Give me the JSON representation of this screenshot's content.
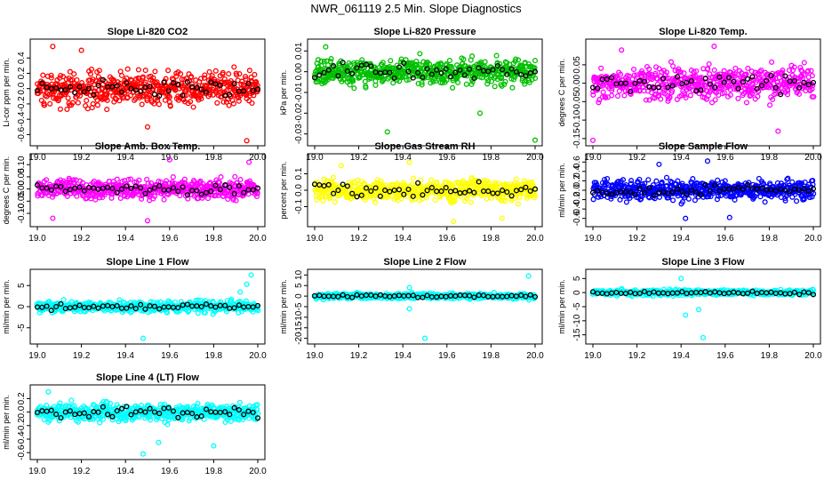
{
  "figure_title": "NWR_061119  2.5 Min. Slope Diagnostics",
  "chart_data": [
    {
      "type": "scatter",
      "title": "Slope Li-820 CO2",
      "ylabel": "Li-cor ppm per min.",
      "xlim": [
        19.0,
        20.0
      ],
      "ylim": [
        -0.7,
        0.6
      ],
      "x_ticks": [
        "19.0",
        "19.2",
        "19.4",
        "19.6",
        "19.8",
        "20.0"
      ],
      "y_ticks": [
        -0.6,
        -0.4,
        -0.2,
        0.0,
        0.2,
        0.4
      ],
      "y_tick_labels": [
        "-0.6",
        "-0.4",
        "-0.2",
        "0.0",
        "0.2",
        "0.4"
      ],
      "color": "#ff0000",
      "spread": 0.2,
      "outliers": [
        [
          19.07,
          0.55
        ],
        [
          19.95,
          -0.68
        ],
        [
          19.5,
          -0.5
        ],
        [
          19.2,
          0.5
        ]
      ]
    },
    {
      "type": "scatter",
      "title": "Slope Li-820 Pressure",
      "ylabel": "kPa per min.",
      "xlim": [
        19.0,
        20.0
      ],
      "ylim": [
        -0.034,
        0.014
      ],
      "x_ticks": [
        "19.0",
        "19.2",
        "19.4",
        "19.6",
        "19.8",
        "20.0"
      ],
      "y_ticks": [
        -0.03,
        -0.02,
        -0.01,
        0.0,
        0.01
      ],
      "y_tick_labels": [
        "-0.03",
        "-0.02",
        "-0.01",
        "0.00",
        "0.01"
      ],
      "color": "#00c000",
      "spread": 0.006,
      "outliers": [
        [
          19.05,
          0.012
        ],
        [
          19.33,
          -0.029
        ],
        [
          20.0,
          -0.033
        ],
        [
          19.75,
          -0.02
        ]
      ]
    },
    {
      "type": "scatter",
      "title": "Slope Li-820 Temp.",
      "ylabel": "degrees C per min.",
      "xlim": [
        19.0,
        20.0
      ],
      "ylim": [
        -0.16,
        0.11
      ],
      "x_ticks": [
        "19.0",
        "19.2",
        "19.4",
        "19.6",
        "19.8",
        "20.0"
      ],
      "y_ticks": [
        -0.15,
        -0.1,
        -0.05,
        0.0,
        0.05
      ],
      "y_tick_labels": [
        "-0.15",
        "-0.10",
        "-0.05",
        "0.00",
        "0.05"
      ],
      "color": "#ff00ff",
      "spread": 0.04,
      "outliers": [
        [
          19.0,
          -0.155
        ],
        [
          19.55,
          0.1
        ],
        [
          19.84,
          -0.13
        ],
        [
          19.13,
          0.09
        ]
      ]
    },
    {
      "type": "scatter",
      "title": "Slope Amb. Box Temp.",
      "ylabel": "degrees C per min.",
      "xlim": [
        19.0,
        20.0
      ],
      "ylim": [
        -0.14,
        0.13
      ],
      "x_ticks": [
        "19.0",
        "19.2",
        "19.4",
        "19.6",
        "19.8",
        "20.0"
      ],
      "y_ticks": [
        -0.1,
        -0.05,
        0.0,
        0.05,
        0.1
      ],
      "y_tick_labels": [
        "-0.10",
        "-0.05",
        "0.00",
        "0.05",
        "0.10"
      ],
      "color": "#ff00ff",
      "spread": 0.04,
      "outliers": [
        [
          19.6,
          0.12
        ],
        [
          19.07,
          -0.12
        ],
        [
          19.96,
          0.11
        ],
        [
          19.5,
          -0.13
        ]
      ]
    },
    {
      "type": "scatter",
      "title": "Slope Gas Stream RH",
      "ylabel": "percent per min.",
      "xlim": [
        19.0,
        20.0
      ],
      "ylim": [
        -0.2,
        0.2
      ],
      "x_ticks": [
        "19.0",
        "19.2",
        "19.4",
        "19.6",
        "19.8",
        "20.0"
      ],
      "y_ticks": [
        -0.1,
        0.0,
        0.1
      ],
      "y_tick_labels": [
        "-0.1",
        "0.0",
        "0.1"
      ],
      "color": "#ffff00",
      "spread": 0.06,
      "outliers": [
        [
          19.63,
          -0.19
        ],
        [
          19.43,
          0.17
        ],
        [
          19.12,
          0.15
        ],
        [
          19.85,
          -0.17
        ]
      ]
    },
    {
      "type": "scatter",
      "title": "Slope Sample Flow",
      "ylabel": "ml/min per min.",
      "xlim": [
        19.0,
        20.0
      ],
      "ylim": [
        -0.7,
        0.7
      ],
      "x_ticks": [
        "19.0",
        "19.2",
        "19.4",
        "19.6",
        "19.8",
        "20.0"
      ],
      "y_ticks": [
        -0.6,
        -0.4,
        -0.2,
        0.0,
        0.2,
        0.4,
        0.6
      ],
      "y_tick_labels": [
        "-0.6",
        "-0.4",
        "-0.2",
        "0.0",
        "0.2",
        "0.4",
        "0.6"
      ],
      "color": "#0000ff",
      "spread": 0.2,
      "outliers": [
        [
          19.52,
          0.62
        ],
        [
          19.3,
          0.55
        ],
        [
          19.42,
          -0.6
        ],
        [
          19.62,
          -0.58
        ]
      ]
    },
    {
      "type": "scatter",
      "title": "Slope Line 1 Flow",
      "ylabel": "ml/min per min.",
      "xlim": [
        19.0,
        20.0
      ],
      "ylim": [
        -8,
        8
      ],
      "x_ticks": [
        "19.0",
        "19.2",
        "19.4",
        "19.6",
        "19.8",
        "20.0"
      ],
      "y_ticks": [
        -5,
        0,
        5
      ],
      "y_tick_labels": [
        "-5",
        "0",
        "5"
      ],
      "color": "#00ffff",
      "spread": 1.2,
      "outliers": [
        [
          19.97,
          7.5
        ],
        [
          19.95,
          5.3
        ],
        [
          19.48,
          -7.5
        ],
        [
          19.92,
          3.5
        ]
      ]
    },
    {
      "type": "scatter",
      "title": "Slope Line 2 Flow",
      "ylabel": "ml/min per min.",
      "xlim": [
        19.0,
        20.0
      ],
      "ylim": [
        -21,
        11
      ],
      "x_ticks": [
        "19.0",
        "19.2",
        "19.4",
        "19.6",
        "19.8",
        "20.0"
      ],
      "y_ticks": [
        -20,
        -15,
        -10,
        -5,
        0,
        5,
        10
      ],
      "y_tick_labels": [
        "-20",
        "-15",
        "-10",
        "-5",
        "0",
        "5",
        "10"
      ],
      "color": "#00ffff",
      "spread": 1.2,
      "outliers": [
        [
          19.5,
          -20
        ],
        [
          19.97,
          9.5
        ],
        [
          19.43,
          -6
        ],
        [
          19.43,
          4
        ]
      ]
    },
    {
      "type": "scatter",
      "title": "Slope Line 3 Flow",
      "ylabel": "ml/min per min.",
      "xlim": [
        19.0,
        20.0
      ],
      "ylim": [
        -17,
        7
      ],
      "x_ticks": [
        "19.0",
        "19.2",
        "19.4",
        "19.6",
        "19.8",
        "20.0"
      ],
      "y_ticks": [
        -15,
        -10,
        -5,
        0,
        5
      ],
      "y_tick_labels": [
        "-15",
        "-10",
        "-5",
        "0",
        "5"
      ],
      "color": "#00ffff",
      "spread": 0.9,
      "outliers": [
        [
          19.5,
          -16
        ],
        [
          19.42,
          -8
        ],
        [
          19.4,
          5
        ],
        [
          19.48,
          -6
        ]
      ]
    },
    {
      "type": "scatter",
      "title": "Slope Line 4 (LT) Flow",
      "ylabel": "ml/min per min.",
      "xlim": [
        19.0,
        20.0
      ],
      "ylim": [
        -0.65,
        0.35
      ],
      "x_ticks": [
        "19.0",
        "19.2",
        "19.4",
        "19.6",
        "19.8",
        "20.0"
      ],
      "y_ticks": [
        -0.6,
        -0.4,
        -0.2,
        0.0,
        0.2
      ],
      "y_tick_labels": [
        "-0.6",
        "-0.4",
        "-0.2",
        "0.0",
        "0.2"
      ],
      "color": "#00ffff",
      "spread": 0.12,
      "outliers": [
        [
          19.48,
          -0.62
        ],
        [
          19.55,
          -0.45
        ],
        [
          19.8,
          -0.5
        ],
        [
          19.05,
          0.3
        ]
      ]
    }
  ]
}
